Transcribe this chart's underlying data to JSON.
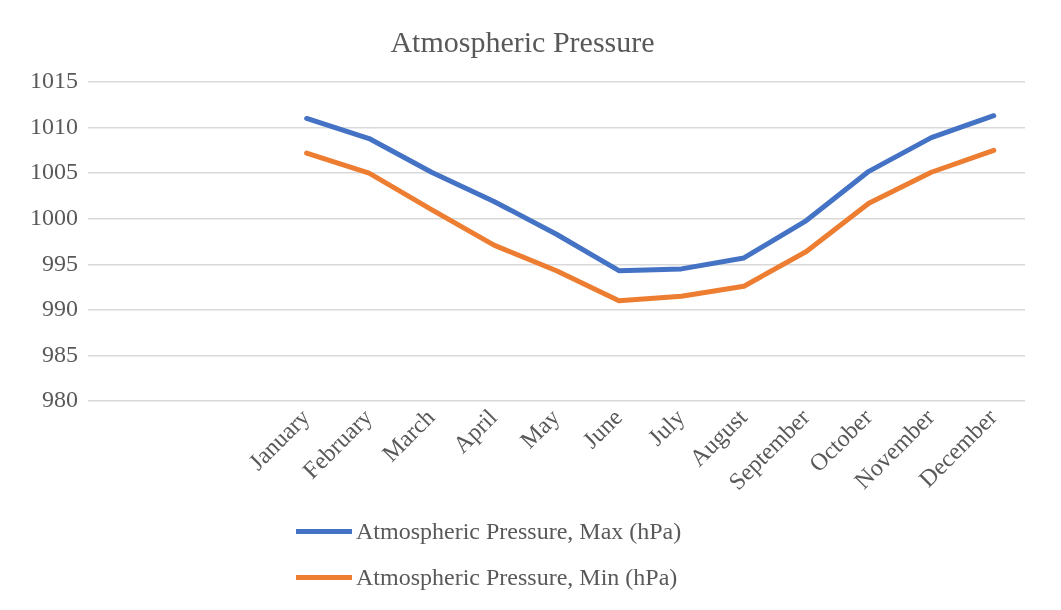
{
  "chart_data": {
    "type": "line",
    "title": "Atmospheric Pressure",
    "categories": [
      null,
      null,
      null,
      "January",
      "February",
      "March",
      "April",
      "May",
      "June",
      "July",
      "August",
      "September",
      "October",
      "November",
      "December"
    ],
    "series": [
      {
        "name": "Atmospheric Pressure, Max (hPa)",
        "color": "#4472c4",
        "values": [
          null,
          null,
          null,
          1011,
          1008.8,
          1005.1,
          1001.9,
          998.3,
          994.3,
          994.5,
          995.7,
          999.8,
          1005.2,
          1008.9,
          1011.3
        ]
      },
      {
        "name": "Atmospheric Pressure, Min (hPa)",
        "color": "#ed7d31",
        "values": [
          null,
          null,
          null,
          1007.2,
          1005,
          1001,
          997.1,
          994.3,
          991,
          991.5,
          992.6,
          996.4,
          1001.7,
          1005.1,
          1007.5
        ]
      }
    ],
    "ylim": [
      980,
      1015
    ],
    "yticks": [
      980,
      985,
      990,
      995,
      1000,
      1005,
      1010,
      1015
    ],
    "grid": "y",
    "legend": "bottom",
    "marker": "none",
    "line_style": "solid"
  }
}
